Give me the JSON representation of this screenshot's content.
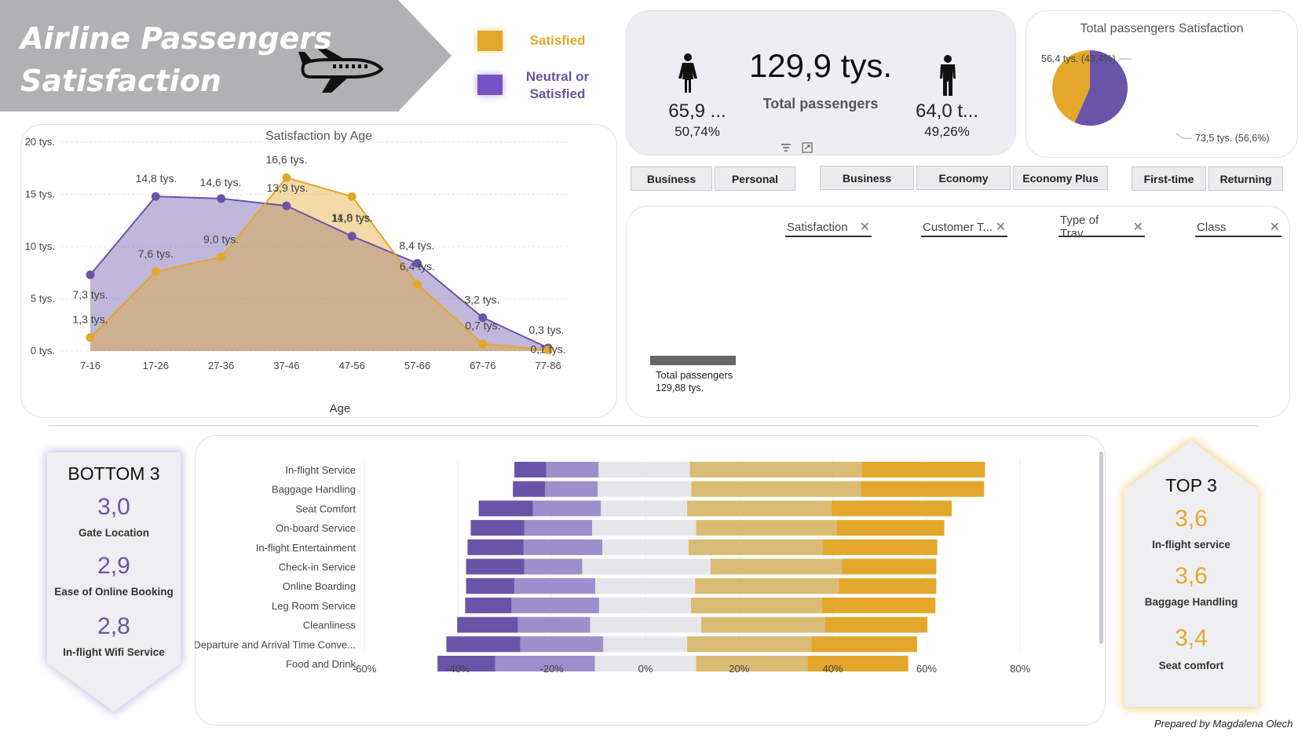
{
  "header": {
    "title_line1": "Airline Passengers",
    "title_line2": "Satisfaction",
    "icon": "airplane-icon"
  },
  "legend": {
    "satisfied_label": "Satisfied",
    "neutral_label_line1": "Neutral or",
    "neutral_label_line2": "Satisfied"
  },
  "colors": {
    "satisfied": "#e3a82b",
    "neutral": "#6a54a8",
    "neutral_light": "#9d8fcc",
    "satisfied_light": "#d9bb74",
    "neutral_mid": "#e6e6ea",
    "banner": "#b0b0b2"
  },
  "kpi": {
    "female_value": "65,9 ...",
    "female_pct": "50,74%",
    "total_value": "129,9 tys.",
    "total_label": "Total passengers",
    "male_value": "64,0 t...",
    "male_pct": "49,26%"
  },
  "pie": {
    "title": "Total passengers Satisfaction",
    "label_satisfied": "56,4 tys. (43,4%)",
    "label_neutral": "73,5 tys. (56,6%)"
  },
  "slicers": {
    "travel_type": [
      "Business",
      "Personal"
    ],
    "class": [
      "Business",
      "Economy",
      "Economy Plus"
    ],
    "customer_type": [
      "First-time",
      "Returning"
    ]
  },
  "filters": {
    "chips": [
      "Satisfaction",
      "Customer T...",
      "Type of Trav...",
      "Class"
    ],
    "total_label": "Total passengers",
    "total_value": "129,88 tys."
  },
  "age_chart": {
    "title": "Satisfaction by Age",
    "xlabel": "Age",
    "y_ticks": [
      "0 tys.",
      "5 tys.",
      "10 tys.",
      "15 tys.",
      "20 tys."
    ]
  },
  "bottom3": {
    "title": "BOTTOM 3",
    "items": [
      {
        "value": "3,0",
        "label": "Gate Location"
      },
      {
        "value": "2,9",
        "label": "Ease of Online Booking"
      },
      {
        "value": "2,8",
        "label": "In-flight Wifi Service"
      }
    ]
  },
  "top3": {
    "title": "TOP 3",
    "items": [
      {
        "value": "3,6",
        "label": "In-flight service"
      },
      {
        "value": "3,6",
        "label": "Baggage Handling"
      },
      {
        "value": "3,4",
        "label": "Seat comfort"
      }
    ]
  },
  "credit": "Prepared by Magdalena Olech",
  "chart_data": [
    {
      "type": "area",
      "title": "Satisfaction by Age",
      "xlabel": "Age",
      "categories": [
        "7-16",
        "17-26",
        "27-36",
        "37-46",
        "47-56",
        "57-66",
        "67-76",
        "77-86"
      ],
      "ylim": [
        0,
        20
      ],
      "series": [
        {
          "name": "Neutral or Satisfied",
          "values": [
            7.3,
            14.8,
            14.6,
            13.9,
            11.0,
            8.4,
            3.2,
            0.3
          ],
          "labels": [
            "7,3 tys.",
            "14,8 tys.",
            "14,6 tys.",
            "13,9 tys.",
            "11,0 tys.",
            "8,4 tys.",
            "3,2 tys.",
            "0,3 tys."
          ]
        },
        {
          "name": "Satisfied",
          "values": [
            1.3,
            7.6,
            9.0,
            16.6,
            14.8,
            6.4,
            0.7,
            0.1
          ],
          "labels": [
            "1,3 tys.",
            "7,6 tys.",
            "9,0 tys.",
            "16,6 tys.",
            "14,8 tys.",
            "6,4 tys.",
            "0,7 tys.",
            "0,1 tys."
          ]
        }
      ],
      "grid": true
    },
    {
      "type": "pie",
      "title": "Total passengers Satisfaction",
      "slices": [
        {
          "name": "Satisfied",
          "value": 56.4
        },
        {
          "name": "Neutral or Satisfied",
          "value": 73.5
        }
      ]
    },
    {
      "type": "bar",
      "orientation": "horizontal-diverging",
      "categories": [
        "In-flight Service",
        "Baggage Handling",
        "Seat Comfort",
        "On-board Service",
        "In-flight Entertainment",
        "Check-in Service",
        "Online Boarding",
        "Leg Room Service",
        "Cleanliness",
        "Departure and Arrival Time Conve...",
        "Food and Drink"
      ],
      "xlim": [
        -60,
        80
      ],
      "x_ticks": [
        "-60%",
        "-40%",
        "-20%",
        "0%",
        "20%",
        "40%",
        "60%",
        "80%"
      ],
      "segments": [
        [
          -28.0,
          -21.2,
          -10.0,
          9.5,
          46.2,
          72.5
        ],
        [
          -28.3,
          -21.4,
          -10.2,
          9.8,
          46.0,
          72.3
        ],
        [
          -35.6,
          -24.0,
          -9.5,
          8.9,
          39.7,
          65.4
        ],
        [
          -37.3,
          -25.9,
          -11.4,
          10.8,
          40.8,
          63.8
        ],
        [
          -38.0,
          -26.0,
          -9.2,
          9.2,
          37.9,
          62.3
        ],
        [
          -38.3,
          -25.9,
          -13.5,
          13.9,
          42.0,
          62.1
        ],
        [
          -38.3,
          -28.0,
          -10.7,
          10.6,
          41.3,
          62.1
        ],
        [
          -38.5,
          -28.6,
          -9.9,
          9.7,
          37.7,
          61.9
        ],
        [
          -40.2,
          -27.2,
          -11.8,
          11.9,
          38.4,
          60.2
        ],
        [
          -42.5,
          -26.7,
          -9.0,
          8.9,
          35.4,
          58.0
        ],
        [
          -44.4,
          -32.1,
          -10.8,
          10.8,
          34.6,
          56.1
        ]
      ]
    }
  ]
}
